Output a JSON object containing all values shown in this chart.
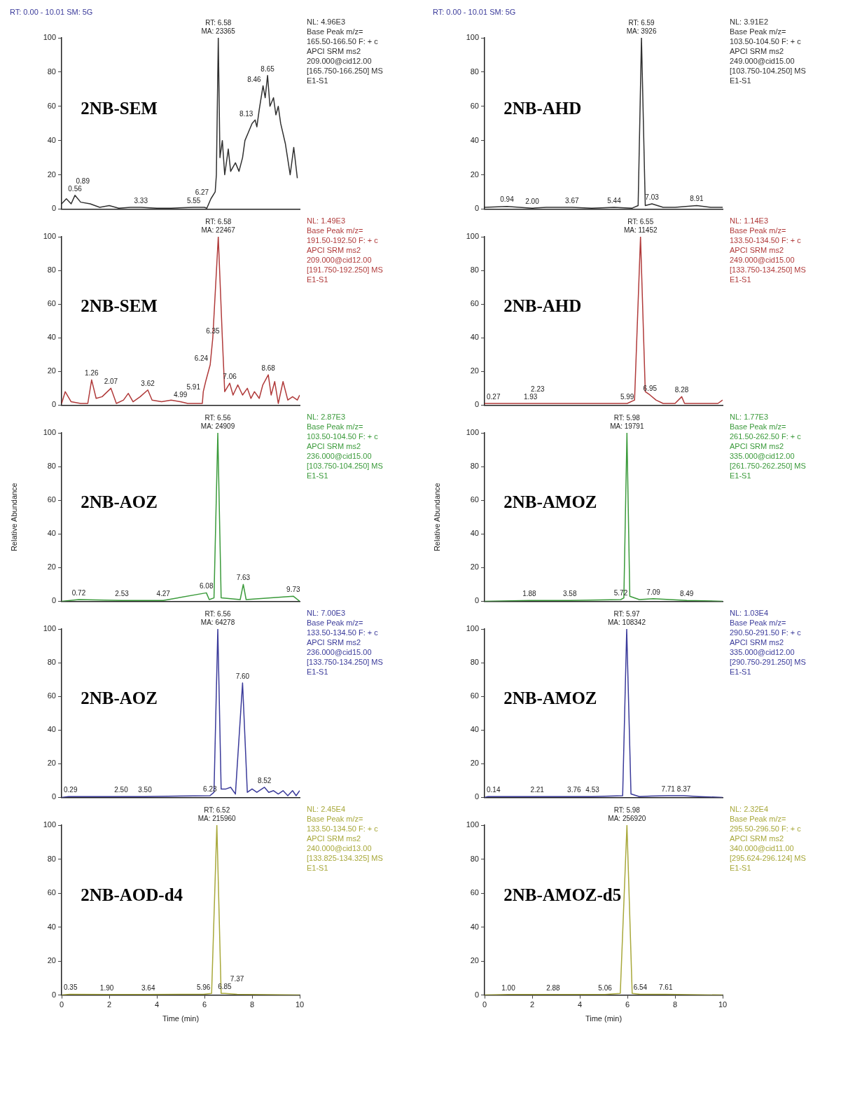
{
  "chart_data": [
    {
      "type": "line",
      "title": "2NB-SEM",
      "subtitle": "RT: 0.00 - 10.01 SM: 5G",
      "xlim": [
        0,
        10
      ],
      "ylim": [
        0,
        100
      ],
      "yticks": [
        0,
        20,
        40,
        60,
        80,
        100
      ],
      "tick_labels": "y",
      "legend": false,
      "series": [
        {
          "color": "#303030",
          "x": [
            0,
            0.2,
            0.4,
            0.56,
            0.8,
            1.2,
            1.6,
            2,
            2.4,
            2.89,
            3.33,
            4,
            4.6,
            5.55,
            6,
            6.1,
            6.27,
            6.45,
            6.5,
            6.58,
            6.65,
            6.75,
            6.85,
            7,
            7.1,
            7.3,
            7.45,
            7.6,
            7.7,
            7.85,
            8,
            8.13,
            8.2,
            8.3,
            8.46,
            8.55,
            8.65,
            8.75,
            8.9,
            9,
            9.1,
            9.2,
            9.4,
            9.6,
            9.75,
            9.9
          ],
          "values": [
            3,
            6,
            3,
            8,
            4,
            3,
            1,
            2,
            0.5,
            1,
            1,
            0.5,
            0.5,
            1,
            1,
            0.5,
            6,
            10,
            20,
            100,
            30,
            40,
            20,
            35,
            22,
            27,
            22,
            30,
            40,
            45,
            50,
            52,
            48,
            58,
            72,
            65,
            78,
            60,
            65,
            55,
            60,
            50,
            38,
            20,
            36,
            18
          ]
        }
      ],
      "annotations": [
        {
          "text": "RT: 6.58",
          "x": 6.58,
          "y": 100
        },
        {
          "text": "MA: 23365",
          "x": 6.58,
          "y": 100
        },
        {
          "text": "0.56",
          "x": 0.56,
          "y": 8
        },
        {
          "text": "0.89",
          "x": 0.89,
          "y": 4
        },
        {
          "text": "3.33",
          "x": 3.33,
          "y": 1
        },
        {
          "text": "5.55",
          "x": 5.55,
          "y": 1
        },
        {
          "text": "6.27",
          "x": 6.27,
          "y": 6
        },
        {
          "text": "8.13",
          "x": 8.13,
          "y": 52
        },
        {
          "text": "8.46",
          "x": 8.46,
          "y": 72
        },
        {
          "text": "8.65",
          "x": 8.65,
          "y": 78
        },
        "NL: 4.96E3",
        "Base Peak m/z=",
        "165.50-166.50 F: + c",
        "APCI SRM ms2",
        "209.000@cid12.00",
        "[165.750-166.250] MS",
        "E1-S1"
      ]
    },
    {
      "type": "line",
      "title": "2NB-AHD",
      "subtitle": "RT: 0.00 - 10.01 SM: 5G",
      "xlim": [
        0,
        10
      ],
      "ylim": [
        0,
        100
      ],
      "yticks": [
        0,
        20,
        40,
        60,
        80,
        100
      ],
      "tick_labels": "y",
      "legend": false,
      "series": [
        {
          "color": "#303030",
          "x": [
            0,
            0.94,
            2,
            2.6,
            3.67,
            4.5,
            5.44,
            6.2,
            6.45,
            6.59,
            6.75,
            7.03,
            7.5,
            8,
            8.91,
            9.5,
            10
          ],
          "values": [
            1,
            1.5,
            0.5,
            1,
            1,
            0.5,
            1,
            0.5,
            2,
            100,
            2,
            3,
            1,
            1,
            2,
            1,
            1
          ]
        }
      ],
      "annotations": [
        {
          "text": "RT: 6.59",
          "x": 6.59,
          "y": 100
        },
        {
          "text": "MA: 3926",
          "x": 6.59,
          "y": 100
        },
        {
          "text": "0.94",
          "x": 0.94,
          "y": 1.5
        },
        {
          "text": "2.00",
          "x": 2,
          "y": 0.5
        },
        {
          "text": "3.67",
          "x": 3.67,
          "y": 1
        },
        {
          "text": "5.44",
          "x": 5.44,
          "y": 1
        },
        {
          "text": "7.03",
          "x": 7.03,
          "y": 3
        },
        {
          "text": "8.91",
          "x": 8.91,
          "y": 2
        },
        "NL: 3.91E2",
        "Base Peak m/z=",
        "103.50-104.50 F: + c",
        "APCI SRM ms2",
        "249.000@cid15.00",
        "[103.750-104.250] MS",
        "E1-S1"
      ]
    },
    {
      "type": "line",
      "title": "2NB-SEM",
      "xlim": [
        0,
        10
      ],
      "ylim": [
        0,
        100
      ],
      "yticks": [
        0,
        20,
        40,
        60,
        80,
        100
      ],
      "tick_labels": "y",
      "legend": false,
      "series": [
        {
          "color": "#b03a3a",
          "x": [
            0,
            0.15,
            0.4,
            0.8,
            1.1,
            1.26,
            1.45,
            1.7,
            2.07,
            2.3,
            2.6,
            2.8,
            3,
            3.3,
            3.62,
            3.8,
            4.2,
            4.6,
            4.99,
            5.3,
            5.91,
            5.95,
            6.05,
            6.24,
            6.35,
            6.58,
            6.75,
            6.85,
            7.06,
            7.2,
            7.4,
            7.6,
            7.8,
            7.95,
            8.1,
            8.3,
            8.45,
            8.68,
            8.8,
            8.95,
            9.1,
            9.3,
            9.5,
            9.7,
            9.9,
            10
          ],
          "values": [
            1,
            8,
            2,
            1,
            1,
            15,
            4,
            5,
            10,
            1,
            3,
            7,
            2,
            5,
            9,
            3,
            2,
            3,
            2,
            1,
            1,
            8,
            14,
            24,
            40,
            100,
            40,
            8,
            13,
            6,
            12,
            6,
            10,
            4,
            8,
            4,
            12,
            18,
            6,
            14,
            1,
            14,
            3,
            5,
            3,
            6
          ]
        }
      ],
      "annotations": [
        {
          "text": "RT: 6.58",
          "x": 6.58,
          "y": 100
        },
        {
          "text": "MA: 22467",
          "x": 6.58,
          "y": 100
        },
        {
          "text": "1.26",
          "x": 1.26,
          "y": 15
        },
        {
          "text": "2.07",
          "x": 2.07,
          "y": 10
        },
        {
          "text": "3.62",
          "x": 3.62,
          "y": 9
        },
        {
          "text": "4.99",
          "x": 4.99,
          "y": 2
        },
        {
          "text": "5.91",
          "x": 5.91,
          "y": 1
        },
        {
          "text": "6.24",
          "x": 6.24,
          "y": 24
        },
        {
          "text": "6.35",
          "x": 6.35,
          "y": 40
        },
        {
          "text": "7.06",
          "x": 7.06,
          "y": 13
        },
        {
          "text": "8.68",
          "x": 8.68,
          "y": 18
        },
        "NL: 1.49E3",
        "Base Peak m/z=",
        "191.50-192.50 F: + c",
        "APCI SRM ms2",
        "209.000@cid12.00",
        "[191.750-192.250] MS",
        "E1-S1"
      ]
    },
    {
      "type": "line",
      "title": "2NB-AHD",
      "xlim": [
        0,
        10
      ],
      "ylim": [
        0,
        100
      ],
      "yticks": [
        0,
        20,
        40,
        60,
        80,
        100
      ],
      "tick_labels": "y",
      "legend": false,
      "series": [
        {
          "color": "#b03a3a",
          "x": [
            0,
            0.27,
            1.93,
            2.23,
            5.99,
            6.3,
            6.55,
            6.75,
            6.95,
            7.2,
            7.5,
            8,
            8.28,
            8.4,
            9,
            9.8,
            10
          ],
          "values": [
            1,
            1,
            1,
            1,
            1,
            3,
            100,
            8,
            6,
            3,
            1,
            1,
            5,
            1,
            1,
            1,
            3
          ]
        }
      ],
      "annotations": [
        {
          "text": "RT: 6.55",
          "x": 6.55,
          "y": 100
        },
        {
          "text": "MA: 11452",
          "x": 6.55,
          "y": 100
        },
        {
          "text": "0.27",
          "x": 0.27,
          "y": 1
        },
        {
          "text": "1.93",
          "x": 1.93,
          "y": 1
        },
        {
          "text": "2.23",
          "x": 2.23,
          "y": 1
        },
        {
          "text": "5.99",
          "x": 5.99,
          "y": 1
        },
        {
          "text": "6.95",
          "x": 6.95,
          "y": 6
        },
        {
          "text": "8.28",
          "x": 8.28,
          "y": 5
        },
        "NL: 1.14E3",
        "Base Peak m/z=",
        "133.50-134.50 F: + c",
        "APCI SRM ms2",
        "249.000@cid15.00",
        "[133.750-134.250] MS",
        "E1-S1"
      ]
    },
    {
      "type": "line",
      "title": "2NB-AOZ",
      "ylabel": "Relative Abundance",
      "xlim": [
        0,
        10
      ],
      "ylim": [
        0,
        100
      ],
      "yticks": [
        0,
        20,
        40,
        60,
        80,
        100
      ],
      "tick_labels": "y",
      "legend": false,
      "series": [
        {
          "color": "#3a9a3a",
          "x": [
            0,
            0.72,
            2.53,
            4.27,
            6.08,
            6.2,
            6.4,
            6.56,
            6.7,
            7.5,
            7.63,
            7.75,
            9.73,
            10
          ],
          "values": [
            0,
            1,
            0.5,
            0.5,
            5,
            1,
            2,
            100,
            2,
            1,
            10,
            1,
            3,
            0
          ]
        }
      ],
      "annotations": [
        {
          "text": "RT: 6.56",
          "x": 6.56,
          "y": 100
        },
        {
          "text": "MA: 24909",
          "x": 6.56,
          "y": 100
        },
        {
          "text": "0.72",
          "x": 0.72,
          "y": 1
        },
        {
          "text": "2.53",
          "x": 2.53,
          "y": 0.5
        },
        {
          "text": "4.27",
          "x": 4.27,
          "y": 0.5
        },
        {
          "text": "6.08",
          "x": 6.08,
          "y": 5
        },
        {
          "text": "7.63",
          "x": 7.63,
          "y": 10
        },
        {
          "text": "9.73",
          "x": 9.73,
          "y": 3
        },
        "NL: 2.87E3",
        "Base Peak m/z=",
        "103.50-104.50 F: + c",
        "APCI SRM ms2",
        "236.000@cid15.00",
        "[103.750-104.250] MS",
        "E1-S1"
      ]
    },
    {
      "type": "line",
      "title": "2NB-AMOZ",
      "ylabel": "Relative Abundance",
      "xlim": [
        0,
        10
      ],
      "ylim": [
        0,
        100
      ],
      "yticks": [
        0,
        20,
        40,
        60,
        80,
        100
      ],
      "tick_labels": "y",
      "legend": false,
      "series": [
        {
          "color": "#3a9a3a",
          "x": [
            0,
            1.88,
            3.58,
            5.72,
            5.85,
            5.98,
            6.1,
            6.5,
            7.09,
            8.49,
            10
          ],
          "values": [
            0,
            0.5,
            0.5,
            1,
            2,
            100,
            3,
            1,
            1.5,
            0.5,
            0
          ]
        }
      ],
      "annotations": [
        {
          "text": "RT: 5.98",
          "x": 5.98,
          "y": 100
        },
        {
          "text": "MA: 19791",
          "x": 5.98,
          "y": 100
        },
        {
          "text": "1.88",
          "x": 1.88,
          "y": 0.5
        },
        {
          "text": "3.58",
          "x": 3.58,
          "y": 0.5
        },
        {
          "text": "5.72",
          "x": 5.72,
          "y": 1
        },
        {
          "text": "7.09",
          "x": 7.09,
          "y": 1.5
        },
        {
          "text": "8.49",
          "x": 8.49,
          "y": 0.5
        },
        "NL: 1.77E3",
        "Base Peak m/z=",
        "261.50-262.50 F: + c",
        "APCI SRM ms2",
        "335.000@cid12.00",
        "[261.750-262.250] MS",
        "E1-S1"
      ]
    },
    {
      "type": "line",
      "title": "2NB-AOZ",
      "xlim": [
        0,
        10
      ],
      "ylim": [
        0,
        100
      ],
      "yticks": [
        0,
        20,
        40,
        60,
        80,
        100
      ],
      "tick_labels": "y",
      "legend": false,
      "series": [
        {
          "color": "#3a3a9a",
          "x": [
            0,
            0.29,
            2.5,
            3.5,
            6.23,
            6.4,
            6.56,
            6.7,
            6.9,
            7.1,
            7.3,
            7.6,
            7.8,
            8,
            8.2,
            8.52,
            8.7,
            8.9,
            9.1,
            9.3,
            9.5,
            9.7,
            9.85,
            10
          ],
          "values": [
            0,
            0.5,
            0.5,
            0.5,
            1,
            3,
            100,
            5,
            5,
            6,
            2,
            68,
            3,
            5,
            3,
            6,
            3,
            4,
            2,
            4,
            1,
            4,
            1,
            4
          ]
        }
      ],
      "annotations": [
        {
          "text": "RT: 6.56",
          "x": 6.56,
          "y": 100
        },
        {
          "text": "MA: 64278",
          "x": 6.56,
          "y": 100
        },
        {
          "text": "0.29",
          "x": 0.29,
          "y": 0.5
        },
        {
          "text": "2.50",
          "x": 2.5,
          "y": 0.5
        },
        {
          "text": "3.50",
          "x": 3.5,
          "y": 0.5
        },
        {
          "text": "6.23",
          "x": 6.23,
          "y": 1
        },
        {
          "text": "7.60",
          "x": 7.6,
          "y": 68
        },
        {
          "text": "8.52",
          "x": 8.52,
          "y": 6
        },
        "NL: 7.00E3",
        "Base Peak m/z=",
        "133.50-134.50 F: + c",
        "APCI SRM ms2",
        "236.000@cid15.00",
        "[133.750-134.250] MS",
        "E1-S1"
      ]
    },
    {
      "type": "line",
      "title": "2NB-AMOZ",
      "xlim": [
        0,
        10
      ],
      "ylim": [
        0,
        100
      ],
      "yticks": [
        0,
        20,
        40,
        60,
        80,
        100
      ],
      "tick_labels": "y",
      "legend": false,
      "series": [
        {
          "color": "#3a3a9a",
          "x": [
            0,
            0.14,
            2.21,
            3.76,
            4.53,
            5.8,
            5.97,
            6.15,
            6.5,
            7,
            7.71,
            8.37,
            9,
            10
          ],
          "values": [
            0,
            0.5,
            0.5,
            0.5,
            0.5,
            1,
            100,
            2,
            0.5,
            0.8,
            1,
            1,
            0.5,
            0
          ]
        }
      ],
      "annotations": [
        {
          "text": "RT: 5.97",
          "x": 5.97,
          "y": 100
        },
        {
          "text": "MA: 108342",
          "x": 5.97,
          "y": 100
        },
        {
          "text": "0.14",
          "x": 0.14,
          "y": 0.5
        },
        {
          "text": "2.21",
          "x": 2.21,
          "y": 0.5
        },
        {
          "text": "3.76",
          "x": 3.76,
          "y": 0.5
        },
        {
          "text": "4.53",
          "x": 4.53,
          "y": 0.5
        },
        {
          "text": "7.71",
          "x": 7.71,
          "y": 1
        },
        {
          "text": "8.37",
          "x": 8.37,
          "y": 1
        },
        "NL: 1.03E4",
        "Base Peak m/z=",
        "290.50-291.50 F: + c",
        "APCI SRM ms2",
        "335.000@cid12.00",
        "[290.750-291.250] MS",
        "E1-S1"
      ]
    },
    {
      "type": "line",
      "title": "2NB-AOD-d4",
      "xlabel": "Time (min)",
      "xlim": [
        0,
        10
      ],
      "xticks": [
        0,
        2,
        4,
        6,
        8,
        10
      ],
      "ylim": [
        0,
        100
      ],
      "yticks": [
        0,
        20,
        40,
        60,
        80,
        100
      ],
      "legend": false,
      "series": [
        {
          "color": "#a8a83a",
          "x": [
            0,
            0.35,
            1.9,
            3.64,
            5.96,
            6.3,
            6.52,
            6.7,
            6.85,
            7.37,
            10
          ],
          "values": [
            0,
            0.5,
            0.3,
            0.3,
            0.5,
            1,
            100,
            1,
            1,
            0.5,
            0
          ]
        }
      ],
      "annotations": [
        {
          "text": "RT: 6.52",
          "x": 6.52,
          "y": 100
        },
        {
          "text": "MA: 215960",
          "x": 6.52,
          "y": 100
        },
        {
          "text": "0.35",
          "x": 0.35,
          "y": 0.5
        },
        {
          "text": "1.90",
          "x": 1.9,
          "y": 0.3
        },
        {
          "text": "3.64",
          "x": 3.64,
          "y": 0.3
        },
        {
          "text": "5.96",
          "x": 5.96,
          "y": 0.5
        },
        {
          "text": "6.85",
          "x": 6.85,
          "y": 1
        },
        {
          "text": "7.37",
          "x": 7.37,
          "y": 0.5
        },
        "NL: 2.45E4",
        "Base Peak m/z=",
        "133.50-134.50 F: + c",
        "APCI SRM ms2",
        "240.000@cid13.00",
        "[133.825-134.325] MS",
        "E1-S1"
      ]
    },
    {
      "type": "line",
      "title": "2NB-AMOZ-d5",
      "xlabel": "Time (min)",
      "xlim": [
        0,
        10
      ],
      "xticks": [
        0,
        2,
        4,
        6,
        8,
        10
      ],
      "ylim": [
        0,
        100
      ],
      "yticks": [
        0,
        20,
        40,
        60,
        80,
        100
      ],
      "legend": false,
      "series": [
        {
          "color": "#a8a83a",
          "x": [
            0,
            1,
            2.88,
            5.06,
            5.7,
            5.98,
            6.2,
            6.54,
            7.61,
            10
          ],
          "values": [
            0,
            0.3,
            0.3,
            0.3,
            1,
            100,
            1,
            0.5,
            0.5,
            0
          ]
        }
      ],
      "annotations": [
        {
          "text": "RT: 5.98",
          "x": 5.98,
          "y": 100
        },
        {
          "text": "MA: 256920",
          "x": 5.98,
          "y": 100
        },
        {
          "text": "1.00",
          "x": 1,
          "y": 0.3
        },
        {
          "text": "2.88",
          "x": 2.88,
          "y": 0.3
        },
        {
          "text": "5.06",
          "x": 5.06,
          "y": 0.3
        },
        {
          "text": "6.54",
          "x": 6.54,
          "y": 0.5
        },
        {
          "text": "7.61",
          "x": 7.61,
          "y": 0.5
        },
        "NL: 2.32E4",
        "Base Peak m/z=",
        "295.50-296.50 F: + c",
        "APCI SRM ms2",
        "340.000@cid11.00",
        "[295.624-296.124] MS",
        "E1-S1"
      ]
    }
  ]
}
